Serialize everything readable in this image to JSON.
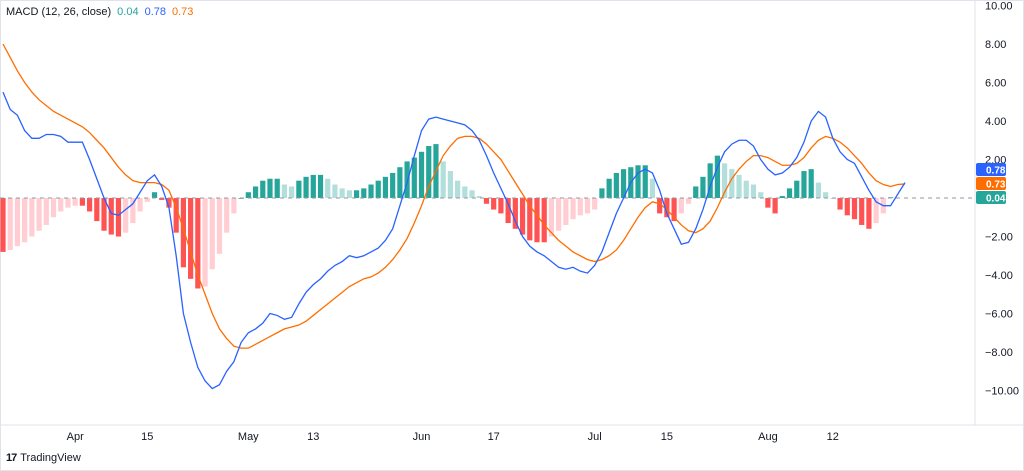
{
  "legend": {
    "title": "MACD (12, 26, close)",
    "hist_value": "0.04",
    "macd_value": "0.78",
    "signal_value": "0.73"
  },
  "branding": {
    "logo": "17",
    "text": "TradingView"
  },
  "colors": {
    "macd": "#2962ff",
    "signal": "#ff6d00",
    "hist_pos_rising": "#26a69a",
    "hist_pos_falling": "#b2dfdb",
    "hist_neg_falling": "#ff5252",
    "hist_neg_rising": "#ffcdd2",
    "zero_line": "#9598a1"
  },
  "chart_data": {
    "type": "line",
    "title": "MACD (12, 26, close)",
    "x_tick_labels": [
      "Apr",
      "15",
      "May",
      "13",
      "Jun",
      "17",
      "Jul",
      "15",
      "Aug",
      "12"
    ],
    "y_tick_labels": [
      "10.00",
      "8.00",
      "6.00",
      "4.00",
      "2.00",
      "−2.00",
      "−4.00",
      "−6.00",
      "−8.00",
      "−10.00"
    ],
    "ylim": [
      -11,
      10
    ],
    "last_value_labels": [
      {
        "series": "MACD",
        "text": "0.78"
      },
      {
        "series": "Signal",
        "text": "0.73"
      },
      {
        "series": "Histogram",
        "text": "0.04"
      }
    ],
    "series": [
      {
        "name": "MACD",
        "values": [
          5.5,
          4.6,
          4.3,
          3.5,
          3.1,
          3.1,
          3.3,
          3.3,
          3.2,
          2.9,
          2.9,
          2.9,
          2.0,
          1.0,
          0.0,
          -0.8,
          -0.9,
          -0.6,
          -0.3,
          0.3,
          0.9,
          1.2,
          0.6,
          -0.5,
          -3.0,
          -6.0,
          -7.5,
          -8.8,
          -9.5,
          -9.9,
          -9.7,
          -9.0,
          -8.5,
          -7.5,
          -7.0,
          -6.8,
          -6.5,
          -6.0,
          -6.1,
          -6.3,
          -6.2,
          -5.5,
          -4.9,
          -4.5,
          -4.2,
          -3.8,
          -3.5,
          -3.3,
          -3.0,
          -3.1,
          -3.0,
          -2.8,
          -2.6,
          -2.2,
          -1.6,
          -0.4,
          0.8,
          2.2,
          3.5,
          4.1,
          4.2,
          4.1,
          4.0,
          3.9,
          3.8,
          3.5,
          3.0,
          2.2,
          1.3,
          0.5,
          -0.3,
          -1.2,
          -2.0,
          -2.5,
          -2.8,
          -3.0,
          -3.3,
          -3.6,
          -3.7,
          -3.6,
          -3.8,
          -3.9,
          -3.5,
          -2.8,
          -1.8,
          -0.8,
          0.0,
          0.8,
          1.3,
          1.5,
          1.3,
          0.4,
          -0.8,
          -1.6,
          -2.4,
          -2.3,
          -1.6,
          -0.6,
          0.6,
          1.6,
          2.4,
          2.8,
          3.0,
          3.0,
          2.7,
          2.0,
          1.5,
          1.2,
          1.3,
          1.6,
          2.1,
          2.9,
          4.0,
          4.5,
          4.2,
          3.1,
          2.4,
          2.0,
          1.8,
          1.1,
          0.4,
          -0.2,
          -0.4,
          -0.4,
          0.2,
          0.8
        ]
      },
      {
        "name": "Signal",
        "values": [
          8.0,
          7.3,
          6.6,
          6.0,
          5.5,
          5.1,
          4.8,
          4.5,
          4.3,
          4.1,
          3.9,
          3.7,
          3.4,
          3.0,
          2.6,
          2.1,
          1.6,
          1.2,
          0.9,
          0.8,
          0.8,
          0.8,
          0.7,
          0.4,
          -0.5,
          -1.6,
          -2.8,
          -4.0,
          -5.0,
          -6.0,
          -6.8,
          -7.3,
          -7.7,
          -7.8,
          -7.8,
          -7.6,
          -7.4,
          -7.2,
          -7.0,
          -6.8,
          -6.7,
          -6.6,
          -6.4,
          -6.1,
          -5.8,
          -5.5,
          -5.2,
          -4.9,
          -4.6,
          -4.4,
          -4.2,
          -4.1,
          -3.9,
          -3.6,
          -3.2,
          -2.7,
          -2.1,
          -1.3,
          -0.4,
          0.6,
          1.4,
          2.2,
          2.7,
          3.1,
          3.2,
          3.2,
          3.1,
          2.8,
          2.4,
          2.0,
          1.4,
          0.8,
          0.2,
          -0.4,
          -0.9,
          -1.4,
          -1.8,
          -2.2,
          -2.5,
          -2.8,
          -3.0,
          -3.2,
          -3.3,
          -3.2,
          -3.0,
          -2.7,
          -2.2,
          -1.6,
          -1.0,
          -0.5,
          -0.2,
          -0.3,
          -0.6,
          -1.0,
          -1.4,
          -1.7,
          -1.8,
          -1.6,
          -1.2,
          -0.5,
          0.3,
          1.0,
          1.5,
          1.9,
          2.2,
          2.2,
          2.1,
          1.9,
          1.7,
          1.7,
          1.8,
          2.1,
          2.6,
          3.0,
          3.2,
          3.1,
          2.9,
          2.6,
          2.2,
          1.8,
          1.3,
          0.9,
          0.7,
          0.6,
          0.7,
          0.73
        ]
      },
      {
        "name": "Histogram",
        "values": [
          -2.8,
          -2.7,
          -2.5,
          -2.3,
          -2.0,
          -1.7,
          -1.4,
          -1.0,
          -0.7,
          -0.5,
          -0.4,
          -0.4,
          -0.7,
          -1.2,
          -1.7,
          -1.9,
          -2.0,
          -1.8,
          -1.3,
          -0.7,
          -0.2,
          0.3,
          -0.1,
          -0.5,
          -1.8,
          -3.6,
          -4.2,
          -4.7,
          -4.6,
          -3.7,
          -2.9,
          -1.8,
          -0.8,
          0.0,
          0.3,
          0.6,
          0.9,
          1.0,
          1.0,
          0.7,
          0.6,
          0.9,
          1.1,
          1.2,
          1.2,
          1.0,
          0.7,
          0.5,
          0.4,
          0.4,
          0.5,
          0.7,
          0.9,
          1.1,
          1.3,
          1.6,
          1.9,
          2.1,
          2.4,
          2.7,
          2.8,
          1.9,
          1.4,
          0.9,
          0.6,
          0.4,
          0.1,
          -0.3,
          -0.6,
          -0.8,
          -1.3,
          -1.6,
          -1.9,
          -2.2,
          -2.3,
          -2.3,
          -2.0,
          -1.7,
          -1.4,
          -1.1,
          -0.9,
          -0.8,
          -0.6,
          0.5,
          1.0,
          1.3,
          1.5,
          1.6,
          1.7,
          1.7,
          1.0,
          -0.8,
          -1.0,
          -1.2,
          -0.8,
          -0.3,
          0.6,
          1.1,
          1.8,
          2.2,
          1.8,
          1.5,
          1.2,
          0.9,
          0.7,
          0.3,
          -0.5,
          -0.8,
          0.1,
          0.5,
          0.9,
          1.4,
          1.5,
          0.8,
          0.3,
          0.0,
          -0.6,
          -0.9,
          -1.1,
          -1.4,
          -1.6,
          -1.3,
          -0.8,
          0.04
        ]
      }
    ]
  }
}
